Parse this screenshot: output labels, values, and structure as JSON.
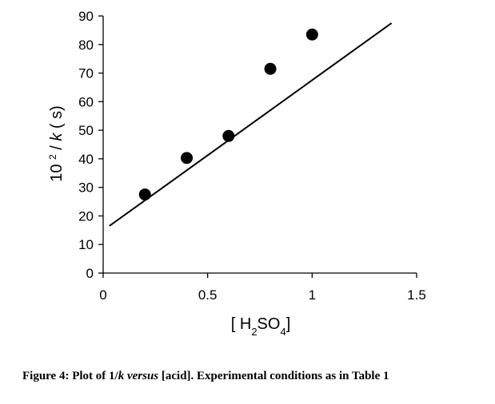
{
  "chart_data": {
    "type": "scatter",
    "xlabel": {
      "pre": "[ H",
      "sub1": "2",
      "mid": "SO",
      "sub2": "4",
      "post": "]"
    },
    "ylabel": {
      "prefix": "10 ",
      "sup": "2",
      "mid": " / ",
      "var": "k",
      "suffix": " ( s)"
    },
    "xlim": [
      0,
      1.5
    ],
    "ylim": [
      0,
      90
    ],
    "x_ticks": [
      0,
      0.5,
      1,
      1.5
    ],
    "x_tick_labels": [
      "0",
      "0.5",
      "1",
      "1.5"
    ],
    "y_ticks": [
      0,
      10,
      20,
      30,
      40,
      50,
      60,
      70,
      80,
      90
    ],
    "y_tick_labels": [
      "0",
      "10",
      "20",
      "30",
      "40",
      "50",
      "60",
      "70",
      "80",
      "90"
    ],
    "grid": false,
    "legend": "none",
    "series": [
      {
        "points": [
          {
            "x": 0.2,
            "y": 27.5
          },
          {
            "x": 0.4,
            "y": 40.3
          },
          {
            "x": 0.6,
            "y": 48.0
          },
          {
            "x": 0.8,
            "y": 71.5
          },
          {
            "x": 1.0,
            "y": 83.5
          }
        ],
        "marker_color": "#000000"
      }
    ],
    "trendline": {
      "x": [
        0.03,
        1.38
      ],
      "y": [
        16.5,
        87.5
      ],
      "color": "#000000"
    }
  },
  "caption": {
    "prefix": "Figure 4: Plot of 1/",
    "k": "k",
    "versus": "versus",
    "suffix": "[acid]. Experimental conditions as in Table 1"
  }
}
